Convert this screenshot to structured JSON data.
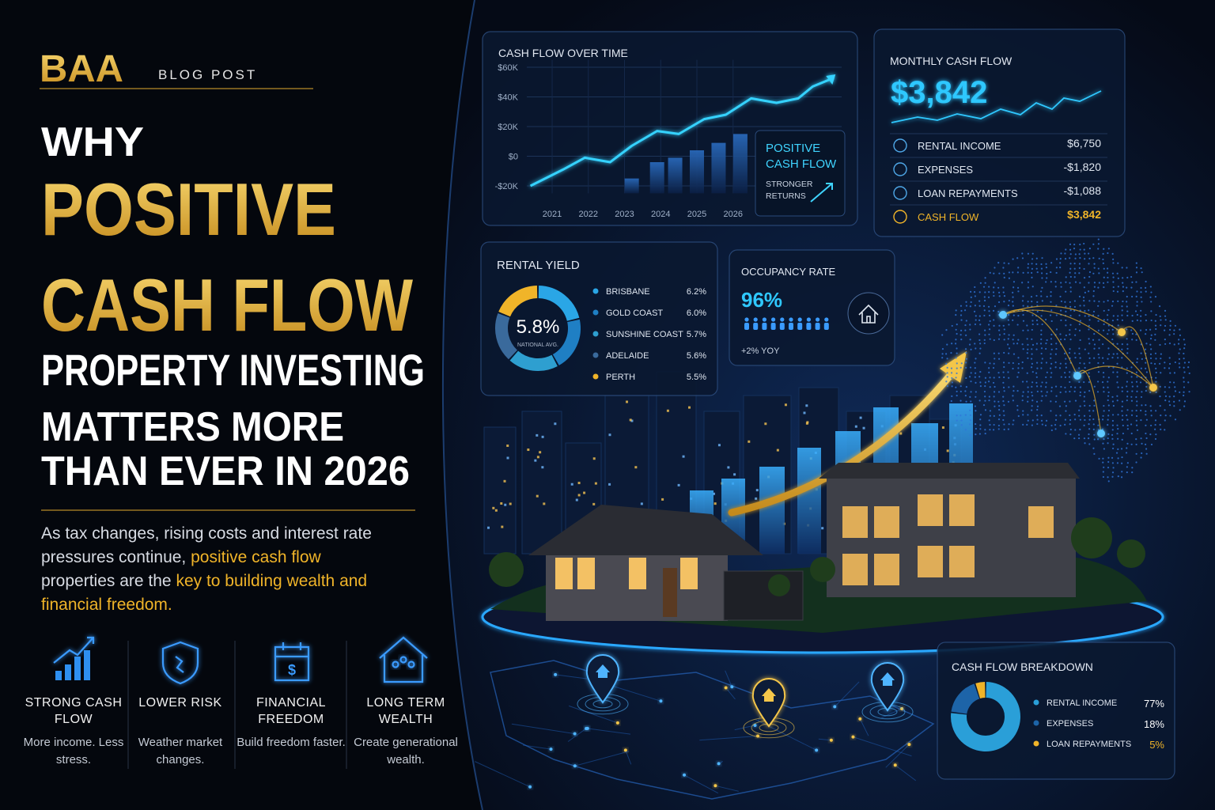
{
  "header": {
    "logo": "BAA",
    "tag": "BLOG POST"
  },
  "headline": {
    "lines": [
      "WHY",
      "POSITIVE",
      "CASH FLOW",
      "PROPERTY INVESTING",
      "MATTERS MORE",
      "THAN EVER IN 2026"
    ]
  },
  "intro": {
    "parts": [
      {
        "text": "As tax changes, rising costs and interest rate pressures continue, ",
        "highlight": false
      },
      {
        "text": "positive cash flow",
        "highlight": true
      },
      {
        "text": " properties are the ",
        "highlight": false
      },
      {
        "text": "key to building wealth and financial freedom.",
        "highlight": true
      }
    ]
  },
  "features": [
    {
      "title": "STRONG CASH FLOW",
      "text": "More income. Less stress."
    },
    {
      "title": "LOWER RISK",
      "text": "Weather market changes."
    },
    {
      "title": "FINANCIAL FREEDOM",
      "text": "Build freedom faster."
    },
    {
      "title": "LONG TERM WEALTH",
      "text": "Create generational wealth."
    }
  ],
  "cash_flow_chart": {
    "type": "line",
    "title": "CASH FLOW OVER TIME",
    "x": [
      2020.4,
      2021.3,
      2021.9,
      2022.6,
      2023.2,
      2023.9,
      2024.5,
      2025.2,
      2025.8,
      2026.5,
      2027.2,
      2027.8,
      2028.2,
      2028.7
    ],
    "series": [
      {
        "color": "#35d2ff",
        "values": [
          -20000,
          -9000,
          -1000,
          -4000,
          7000,
          17000,
          15000,
          25000,
          28000,
          39000,
          36000,
          39000,
          47000,
          52000
        ]
      }
    ],
    "bars": {
      "x": [
        2023.2,
        2023.9,
        2024.4,
        2025.0,
        2025.6,
        2026.2
      ],
      "values": [
        -15000,
        -4000,
        -1000,
        4000,
        9000,
        15000
      ],
      "color": "#1d4f8f"
    },
    "xlim": [
      2020.3,
      2029
    ],
    "ylim": [
      -25000,
      65000
    ],
    "xticks": [
      2021,
      2022,
      2023,
      2024,
      2025,
      2026
    ],
    "yticks": [
      {
        "value": 60000,
        "label": "$60K"
      },
      {
        "value": 40000,
        "label": "$40K"
      },
      {
        "value": 20000,
        "label": "$20K"
      },
      {
        "value": 0,
        "label": "$0"
      },
      {
        "value": -20000,
        "label": "-$20K"
      }
    ],
    "grid": true,
    "callout": {
      "title_lines": [
        "POSITIVE",
        "CASH FLOW"
      ],
      "note_lines": [
        "STRONGER",
        "RETURNS"
      ]
    }
  },
  "monthly_cash_flow": {
    "title": "MONTHLY CASH FLOW",
    "amount": "$3,842",
    "rows": [
      {
        "label": "RENTAL INCOME",
        "value": "$6,750"
      },
      {
        "label": "EXPENSES",
        "value": "-$1,820"
      },
      {
        "label": "LOAN REPAYMENTS",
        "value": "-$1,088"
      },
      {
        "label": "CASH FLOW",
        "value": "$3,842",
        "highlight": true
      }
    ]
  },
  "rental_yield": {
    "type": "donut",
    "title": "RENTAL YIELD",
    "center_label": "5.8%",
    "center_note": "NATIONAL AVG.",
    "categories": [
      "BRISBANE",
      "GOLD COAST",
      "SUNSHINE COAST",
      "ADELAIDE",
      "PERTH"
    ],
    "values": [
      6.2,
      6.0,
      5.7,
      5.6,
      5.5
    ],
    "value_labels": [
      "6.2%",
      "6.0%",
      "5.7%",
      "5.6%",
      "5.5%"
    ],
    "colors": [
      "#2aa6e6",
      "#1f7fc4",
      "#2e9fd0",
      "#3a6a9c",
      "#f0b429"
    ]
  },
  "occupancy": {
    "title": "OCCUPANCY RATE",
    "value": "96%",
    "note": "+2% YOY"
  },
  "cash_flow_breakdown": {
    "type": "donut",
    "title": "CASH FLOW BREAKDOWN",
    "categories": [
      "RENTAL INCOME",
      "EXPENSES",
      "LOAN REPAYMENTS"
    ],
    "values": [
      77,
      18,
      5
    ],
    "value_labels": [
      "77%",
      "18%",
      "5%"
    ],
    "colors": [
      "#2a9fd8",
      "#1d64a8",
      "#f0b429"
    ]
  }
}
